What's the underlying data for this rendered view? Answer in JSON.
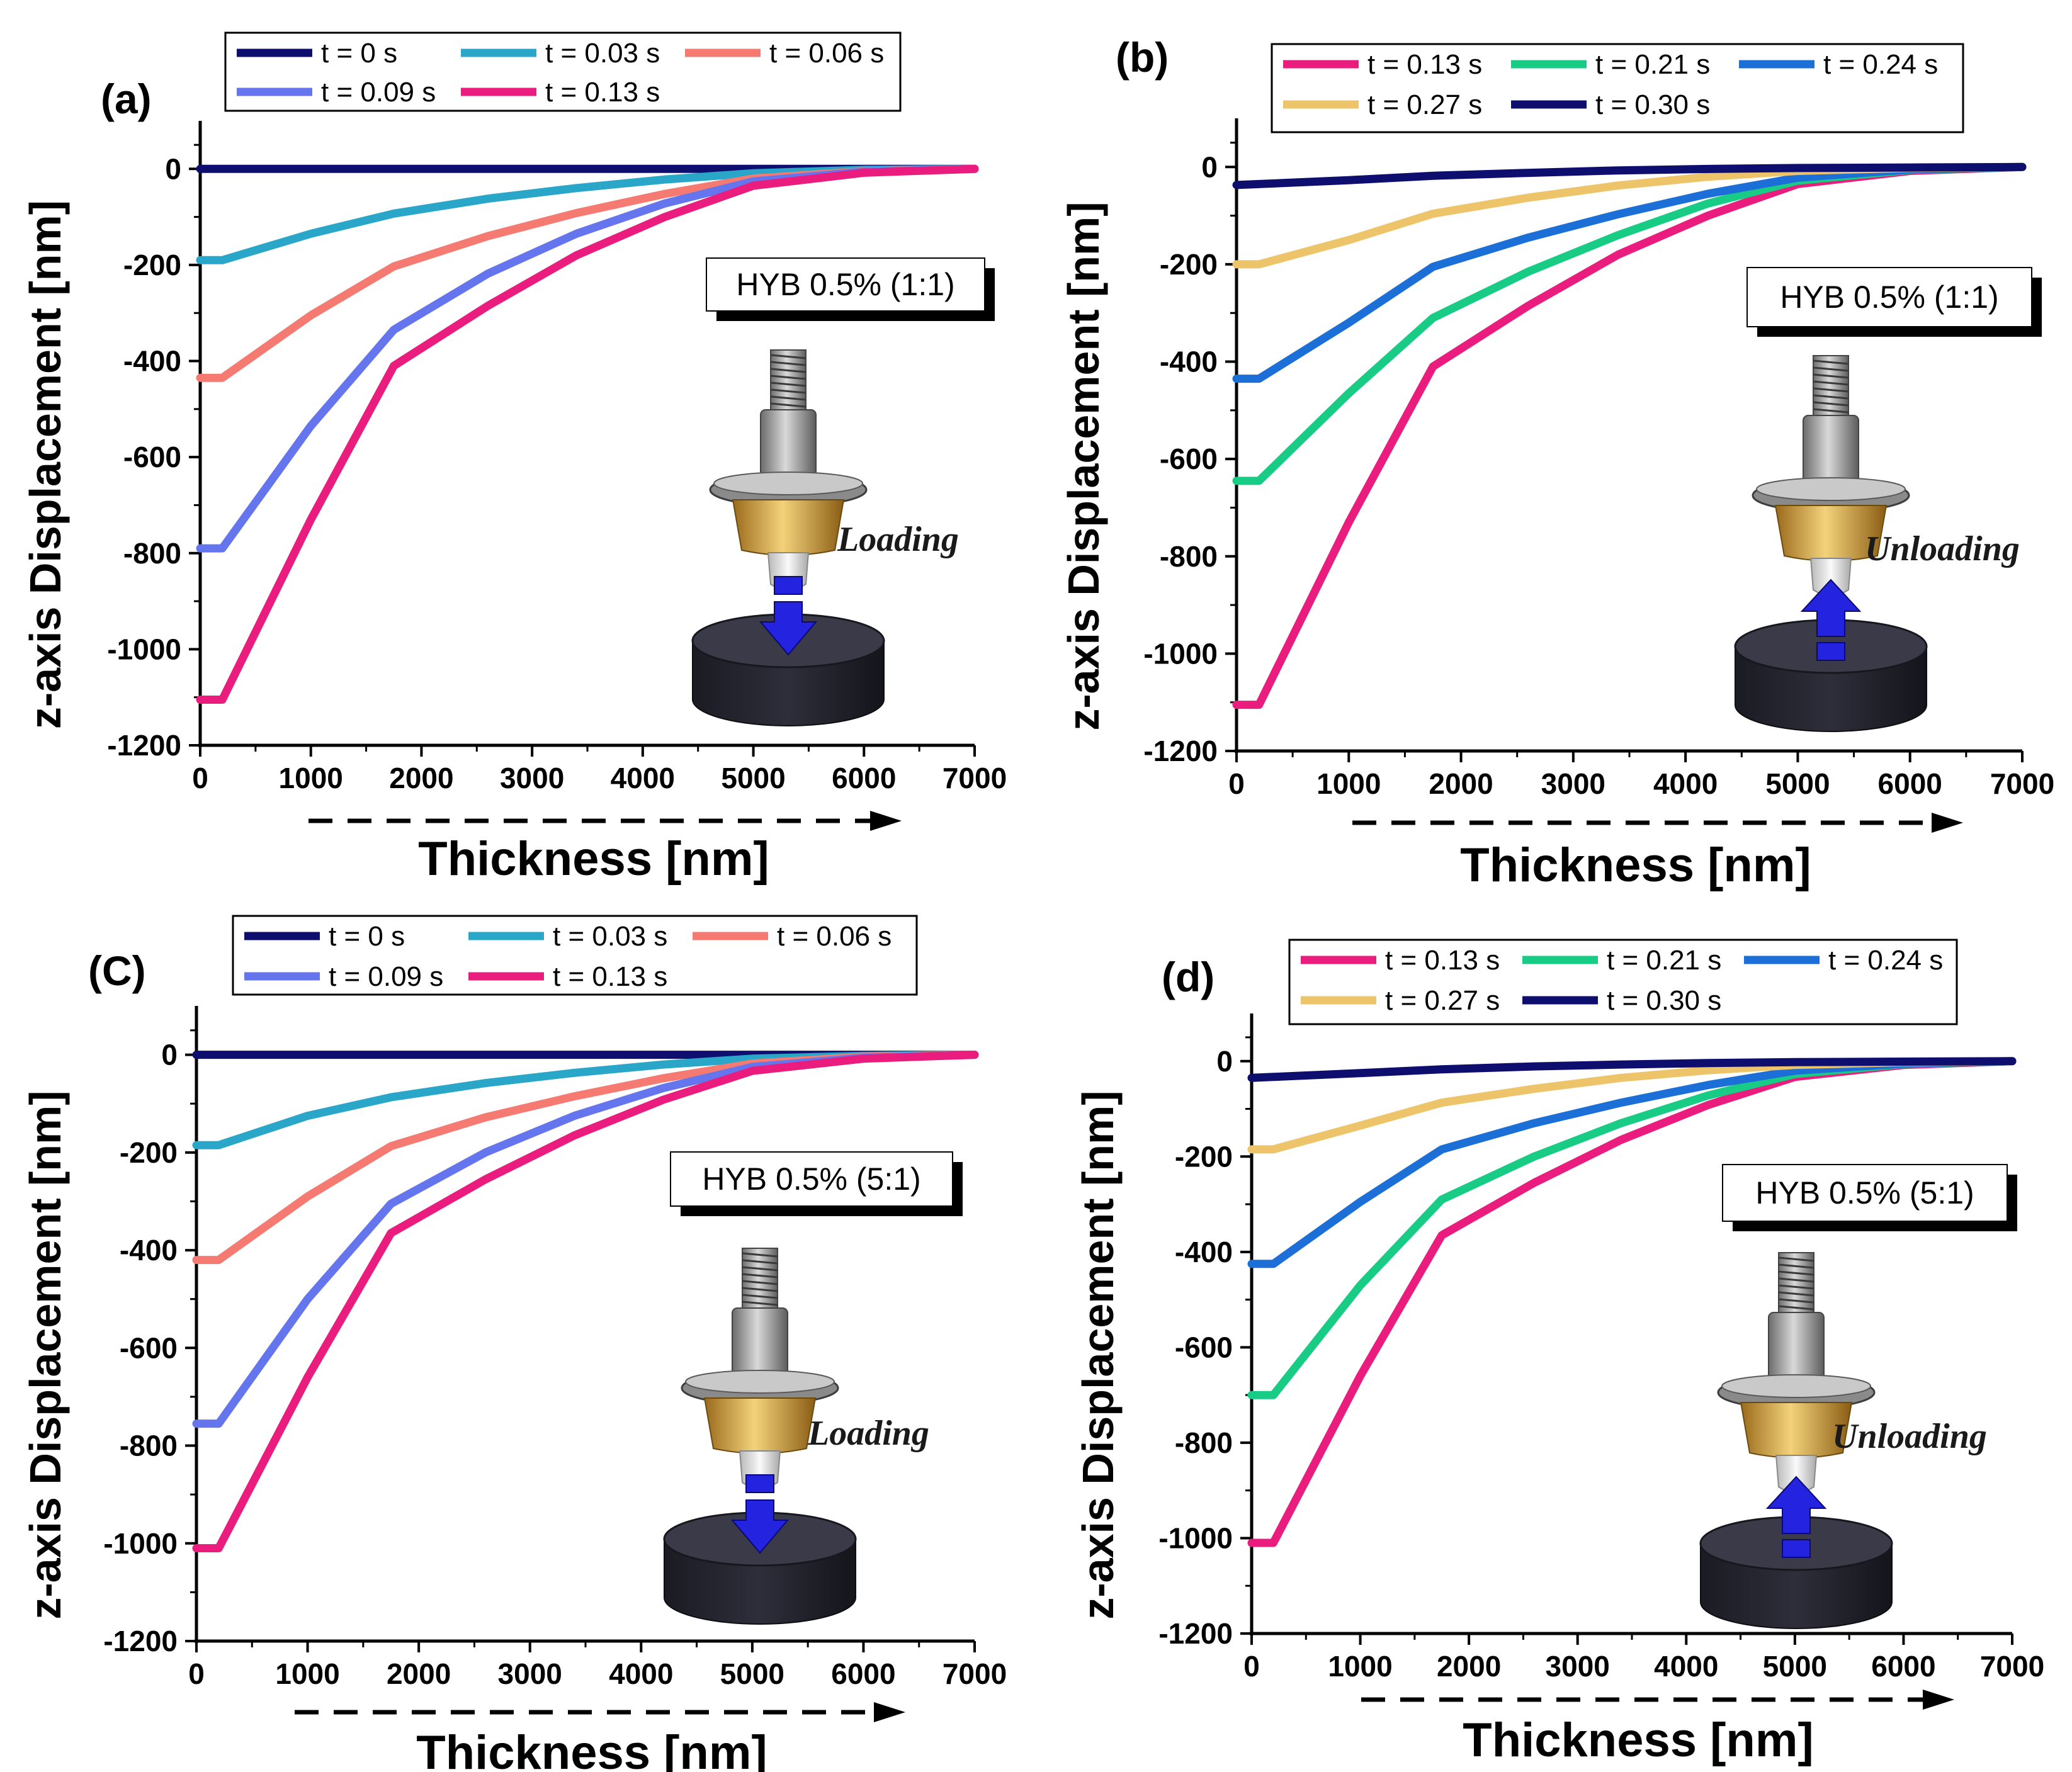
{
  "chart_data": [
    {
      "type": "line",
      "panel_label": "(a)",
      "xlabel": "Thickness [nm]",
      "ylabel": "z-axis Displacement [nm]",
      "xlim": [
        0,
        7000
      ],
      "ylim": [
        -1200,
        100
      ],
      "xticks": [
        "0",
        "1000",
        "2000",
        "3000",
        "4000",
        "5000",
        "6000",
        "7000"
      ],
      "yticks": [
        "0",
        "-200",
        "-400",
        "-600",
        "-800",
        "-1000",
        "-1200"
      ],
      "annotation": "HYB 0.5% (1:1)",
      "mode": "Loading",
      "arrow": "down",
      "legend": {
        "position": "top",
        "columns": 3
      },
      "series": [
        {
          "name": "t = 0 s",
          "color": "#0e0e6e",
          "points": [
            [
              0,
              0
            ],
            [
              1000,
              0
            ],
            [
              2000,
              0
            ],
            [
              3000,
              0
            ],
            [
              4000,
              0
            ],
            [
              5000,
              0
            ],
            [
              6000,
              0
            ],
            [
              7000,
              0
            ]
          ]
        },
        {
          "name": "t = 0.03 s",
          "color": "#2aa6c9",
          "points": [
            [
              0,
              -190
            ],
            [
              200,
              -190
            ],
            [
              1000,
              -135
            ],
            [
              1750,
              -93
            ],
            [
              2600,
              -62
            ],
            [
              3400,
              -40
            ],
            [
              4200,
              -22
            ],
            [
              5000,
              -9
            ],
            [
              6000,
              -2
            ],
            [
              7000,
              0
            ]
          ]
        },
        {
          "name": "t = 0.06 s",
          "color": "#f47a72",
          "points": [
            [
              0,
              -435
            ],
            [
              200,
              -435
            ],
            [
              1000,
              -305
            ],
            [
              1750,
              -203
            ],
            [
              2600,
              -140
            ],
            [
              3400,
              -92
            ],
            [
              4200,
              -52
            ],
            [
              5000,
              -20
            ],
            [
              6000,
              -5
            ],
            [
              7000,
              0
            ]
          ]
        },
        {
          "name": "t = 0.09 s",
          "color": "#6575ee",
          "points": [
            [
              0,
              -790
            ],
            [
              200,
              -790
            ],
            [
              1000,
              -535
            ],
            [
              1750,
              -335
            ],
            [
              2600,
              -218
            ],
            [
              3400,
              -135
            ],
            [
              4200,
              -72
            ],
            [
              5000,
              -26
            ],
            [
              6000,
              -6
            ],
            [
              7000,
              0
            ]
          ]
        },
        {
          "name": "t = 0.13 s",
          "color": "#ea1d7e",
          "points": [
            [
              0,
              -1105
            ],
            [
              200,
              -1105
            ],
            [
              1000,
              -730
            ],
            [
              1750,
              -410
            ],
            [
              2600,
              -285
            ],
            [
              3400,
              -180
            ],
            [
              4200,
              -100
            ],
            [
              5000,
              -35
            ],
            [
              6000,
              -8
            ],
            [
              7000,
              0
            ]
          ]
        }
      ]
    },
    {
      "type": "line",
      "panel_label": "(b)",
      "xlabel": "Thickness [nm]",
      "ylabel": "z-axis Displacement [nm]",
      "xlim": [
        0,
        7000
      ],
      "ylim": [
        -1200,
        100
      ],
      "xticks": [
        "0",
        "1000",
        "2000",
        "3000",
        "4000",
        "5000",
        "6000",
        "7000"
      ],
      "yticks": [
        "0",
        "-200",
        "-400",
        "-600",
        "-800",
        "-1000",
        "-1200"
      ],
      "annotation": "HYB 0.5% (1:1)",
      "mode": "Unloading",
      "arrow": "up",
      "legend": {
        "position": "top",
        "columns": 3
      },
      "series": [
        {
          "name": "t = 0.13 s",
          "color": "#ea1d7e",
          "points": [
            [
              0,
              -1105
            ],
            [
              200,
              -1105
            ],
            [
              1000,
              -730
            ],
            [
              1750,
              -410
            ],
            [
              2600,
              -285
            ],
            [
              3400,
              -180
            ],
            [
              4200,
              -100
            ],
            [
              5000,
              -35
            ],
            [
              6000,
              -8
            ],
            [
              7000,
              0
            ]
          ]
        },
        {
          "name": "t = 0.21 s",
          "color": "#18cc86",
          "points": [
            [
              0,
              -645
            ],
            [
              200,
              -645
            ],
            [
              1000,
              -465
            ],
            [
              1750,
              -310
            ],
            [
              2600,
              -215
            ],
            [
              3400,
              -140
            ],
            [
              4200,
              -75
            ],
            [
              5000,
              -28
            ],
            [
              6000,
              -6
            ],
            [
              7000,
              0
            ]
          ]
        },
        {
          "name": "t = 0.24 s",
          "color": "#1b6fd7",
          "points": [
            [
              0,
              -435
            ],
            [
              200,
              -435
            ],
            [
              1000,
              -320
            ],
            [
              1750,
              -205
            ],
            [
              2600,
              -145
            ],
            [
              3400,
              -97
            ],
            [
              4200,
              -55
            ],
            [
              5000,
              -22
            ],
            [
              6000,
              -5
            ],
            [
              7000,
              0
            ]
          ]
        },
        {
          "name": "t = 0.27 s",
          "color": "#eec46a",
          "points": [
            [
              0,
              -200
            ],
            [
              200,
              -200
            ],
            [
              1000,
              -150
            ],
            [
              1750,
              -96
            ],
            [
              2600,
              -63
            ],
            [
              3400,
              -38
            ],
            [
              4200,
              -20
            ],
            [
              5000,
              -8
            ],
            [
              6000,
              -2
            ],
            [
              7000,
              0
            ]
          ]
        },
        {
          "name": "t = 0.30 s",
          "color": "#0e0e6e",
          "points": [
            [
              0,
              -37
            ],
            [
              200,
              -35
            ],
            [
              1000,
              -27
            ],
            [
              1750,
              -18
            ],
            [
              2600,
              -12
            ],
            [
              3400,
              -7
            ],
            [
              4200,
              -4
            ],
            [
              5000,
              -2
            ],
            [
              6000,
              -1
            ],
            [
              7000,
              0
            ]
          ]
        }
      ]
    },
    {
      "type": "line",
      "panel_label": "(C)",
      "xlabel": "Thickness [nm]",
      "ylabel": "z-axis Displacement [nm]",
      "xlim": [
        0,
        7000
      ],
      "ylim": [
        -1200,
        100
      ],
      "xticks": [
        "0",
        "1000",
        "2000",
        "3000",
        "4000",
        "5000",
        "6000",
        "7000"
      ],
      "yticks": [
        "0",
        "-200",
        "-400",
        "-600",
        "-800",
        "-1000",
        "-1200"
      ],
      "annotation": "HYB 0.5% (5:1)",
      "mode": "Loading",
      "arrow": "down",
      "legend": {
        "position": "top",
        "columns": 3
      },
      "series": [
        {
          "name": "t = 0 s",
          "color": "#0e0e6e",
          "points": [
            [
              0,
              0
            ],
            [
              1000,
              0
            ],
            [
              2000,
              0
            ],
            [
              3000,
              0
            ],
            [
              4000,
              0
            ],
            [
              5000,
              0
            ],
            [
              6000,
              0
            ],
            [
              7000,
              0
            ]
          ]
        },
        {
          "name": "t = 0.03 s",
          "color": "#2aa6c9",
          "points": [
            [
              0,
              -185
            ],
            [
              200,
              -185
            ],
            [
              1000,
              -125
            ],
            [
              1750,
              -87
            ],
            [
              2600,
              -58
            ],
            [
              3400,
              -37
            ],
            [
              4200,
              -20
            ],
            [
              5000,
              -8
            ],
            [
              6000,
              -2
            ],
            [
              7000,
              0
            ]
          ]
        },
        {
          "name": "t = 0.06 s",
          "color": "#f47a72",
          "points": [
            [
              0,
              -420
            ],
            [
              200,
              -420
            ],
            [
              1000,
              -290
            ],
            [
              1750,
              -187
            ],
            [
              2600,
              -128
            ],
            [
              3400,
              -85
            ],
            [
              4200,
              -48
            ],
            [
              5000,
              -18
            ],
            [
              6000,
              -4
            ],
            [
              7000,
              0
            ]
          ]
        },
        {
          "name": "t = 0.09 s",
          "color": "#6575ee",
          "points": [
            [
              0,
              -755
            ],
            [
              200,
              -755
            ],
            [
              1000,
              -500
            ],
            [
              1750,
              -305
            ],
            [
              2600,
              -200
            ],
            [
              3400,
              -125
            ],
            [
              4200,
              -68
            ],
            [
              5000,
              -25
            ],
            [
              6000,
              -6
            ],
            [
              7000,
              0
            ]
          ]
        },
        {
          "name": "t = 0.13 s",
          "color": "#ea1d7e",
          "points": [
            [
              0,
              -1010
            ],
            [
              200,
              -1010
            ],
            [
              1000,
              -660
            ],
            [
              1750,
              -365
            ],
            [
              2600,
              -255
            ],
            [
              3400,
              -165
            ],
            [
              4200,
              -92
            ],
            [
              5000,
              -33
            ],
            [
              6000,
              -8
            ],
            [
              7000,
              0
            ]
          ]
        }
      ]
    },
    {
      "type": "line",
      "panel_label": "(d)",
      "xlabel": "Thickness [nm]",
      "ylabel": "z-axis Displacement [nm]",
      "xlim": [
        0,
        7000
      ],
      "ylim": [
        -1200,
        100
      ],
      "xticks": [
        "0",
        "1000",
        "2000",
        "3000",
        "4000",
        "5000",
        "6000",
        "7000"
      ],
      "yticks": [
        "0",
        "-200",
        "-400",
        "-600",
        "-800",
        "-1000",
        "-1200"
      ],
      "annotation": "HYB 0.5% (5:1)",
      "mode": "Unloading",
      "arrow": "up",
      "legend": {
        "position": "top",
        "columns": 3
      },
      "series": [
        {
          "name": "t = 0.13 s",
          "color": "#ea1d7e",
          "points": [
            [
              0,
              -1010
            ],
            [
              200,
              -1010
            ],
            [
              1000,
              -660
            ],
            [
              1750,
              -365
            ],
            [
              2600,
              -255
            ],
            [
              3400,
              -165
            ],
            [
              4200,
              -92
            ],
            [
              5000,
              -33
            ],
            [
              6000,
              -8
            ],
            [
              7000,
              0
            ]
          ]
        },
        {
          "name": "t = 0.21 s",
          "color": "#18cc86",
          "points": [
            [
              0,
              -700
            ],
            [
              200,
              -700
            ],
            [
              1000,
              -470
            ],
            [
              1750,
              -290
            ],
            [
              2600,
              -200
            ],
            [
              3400,
              -130
            ],
            [
              4200,
              -72
            ],
            [
              5000,
              -27
            ],
            [
              6000,
              -6
            ],
            [
              7000,
              0
            ]
          ]
        },
        {
          "name": "t = 0.24 s",
          "color": "#1b6fd7",
          "points": [
            [
              0,
              -425
            ],
            [
              200,
              -425
            ],
            [
              1000,
              -295
            ],
            [
              1750,
              -185
            ],
            [
              2600,
              -130
            ],
            [
              3400,
              -87
            ],
            [
              4200,
              -50
            ],
            [
              5000,
              -20
            ],
            [
              6000,
              -5
            ],
            [
              7000,
              0
            ]
          ]
        },
        {
          "name": "t = 0.27 s",
          "color": "#eec46a",
          "points": [
            [
              0,
              -185
            ],
            [
              200,
              -185
            ],
            [
              1000,
              -135
            ],
            [
              1750,
              -87
            ],
            [
              2600,
              -58
            ],
            [
              3400,
              -35
            ],
            [
              4200,
              -19
            ],
            [
              5000,
              -8
            ],
            [
              6000,
              -2
            ],
            [
              7000,
              0
            ]
          ]
        },
        {
          "name": "t = 0.30 s",
          "color": "#0e0e6e",
          "points": [
            [
              0,
              -35
            ],
            [
              200,
              -33
            ],
            [
              1000,
              -25
            ],
            [
              1750,
              -17
            ],
            [
              2600,
              -11
            ],
            [
              3400,
              -7
            ],
            [
              4200,
              -4
            ],
            [
              5000,
              -2
            ],
            [
              6000,
              -1
            ],
            [
              7000,
              0
            ]
          ]
        }
      ]
    }
  ]
}
